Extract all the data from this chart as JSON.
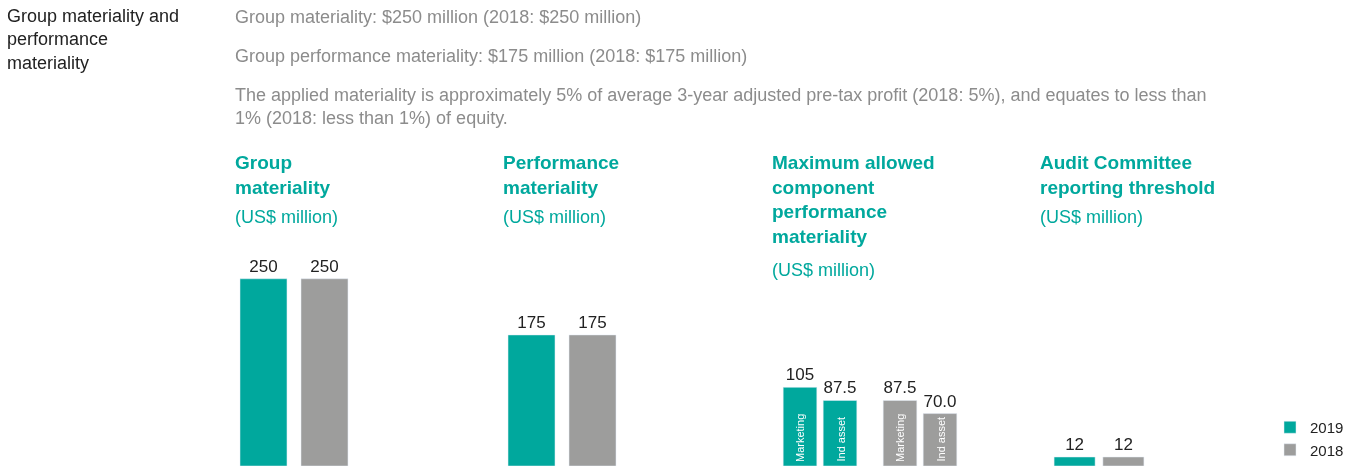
{
  "chart_data": [
    {
      "type": "bar",
      "title": "Group materiality",
      "subtitle": "(US$ million)",
      "categories": [
        null,
        null
      ],
      "values": [
        250,
        250
      ],
      "colors": [
        "#00a89d",
        "#9d9d9c"
      ],
      "data_labels": true,
      "tick_labels": false,
      "legend": false,
      "annotations": [
        "Group materiality and performance materiality",
        "Group materiality: $250 million (2018: $250 million)",
        "Group performance materiality: $175 million (2018: $175 million)",
        "The applied materiality is approximately 5% of average 3-year adjusted pre-tax profit (2018: 5%), and equates to less than 1% (2018: less than 1%) of equity."
      ]
    },
    {
      "type": "bar",
      "title": "Performance materiality",
      "subtitle": "(US$ million)",
      "categories": [
        null,
        null
      ],
      "values": [
        175,
        175
      ],
      "colors": [
        "#00a89d",
        "#9d9d9c"
      ],
      "data_labels": true,
      "tick_labels": false,
      "legend": false
    },
    {
      "type": "bar",
      "title": "Maximum allowed component performance materiality",
      "subtitle": "(US$ million)",
      "categories": [
        null,
        null
      ],
      "tick_labels": false,
      "legend": false,
      "series": [
        {
          "name": "Marketing",
          "colors": [
            "#00a89d",
            "#9d9d9c"
          ],
          "values": [
            105,
            87.5
          ],
          "value_labels": [
            "105",
            "87.5"
          ]
        },
        {
          "name": "Ind asset",
          "colors": [
            "#00a89d",
            "#9d9d9c"
          ],
          "values": [
            87.5,
            70.0
          ],
          "value_labels": [
            "87.5",
            "70.0"
          ]
        }
      ]
    },
    {
      "type": "bar",
      "title": "Audit Committee reporting threshold",
      "subtitle": "(US$ million)",
      "categories": [
        null
      ],
      "data_labels": true,
      "tick_labels": false,
      "legend": "right",
      "series": [
        {
          "name": "2019",
          "color": "#00a89d",
          "values": [
            12
          ]
        },
        {
          "name": "2018",
          "color": "#9d9d9c",
          "values": [
            12
          ]
        }
      ]
    }
  ]
}
